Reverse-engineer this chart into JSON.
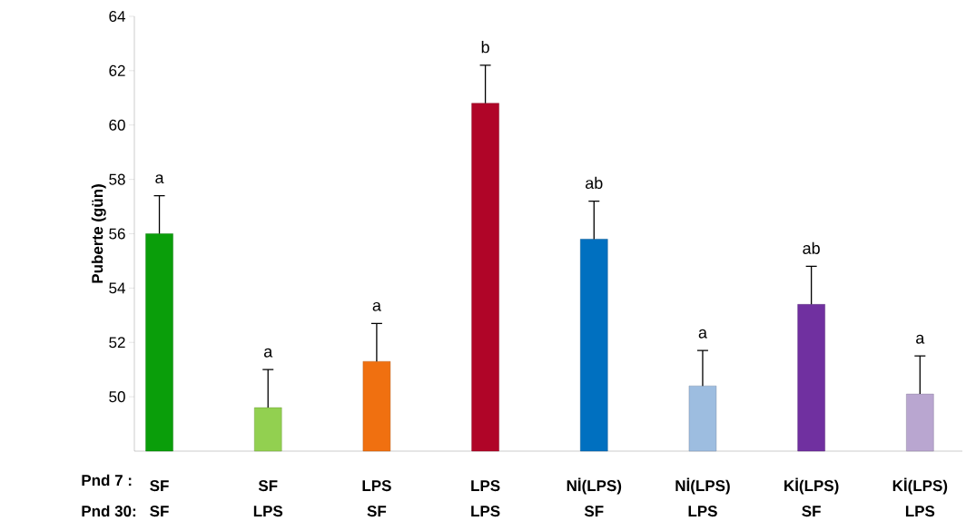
{
  "chart_data": {
    "type": "bar",
    "ylabel": "Puberte (gün)",
    "categories": [
      "SF",
      "SF",
      "LPS",
      "LPS",
      "Nİ(LPS)",
      "Nİ(LPS)",
      "Kİ(LPS)",
      "Kİ(LPS)"
    ],
    "values": [
      56.0,
      49.6,
      51.3,
      60.8,
      55.8,
      50.4,
      53.4,
      50.1
    ],
    "colors": [
      "#0a9e0a",
      "#92d050",
      "#f07010",
      "#b00528",
      "#0070c0",
      "#9dbde0",
      "#7030a0",
      "#b9a6d0"
    ],
    "errors": [
      [
        56.0,
        57.4
      ],
      [
        49.6,
        51.0
      ],
      [
        51.3,
        52.7
      ],
      [
        60.8,
        62.2
      ],
      [
        55.8,
        57.2
      ],
      [
        50.4,
        51.7
      ],
      [
        53.4,
        54.8
      ],
      [
        50.1,
        51.5
      ]
    ],
    "value_labels": [
      "a",
      "a",
      "a",
      "b",
      "ab",
      "a",
      "ab",
      "a"
    ],
    "ylim": [
      48,
      64
    ],
    "yticks": [
      50,
      52,
      54,
      56,
      58,
      60,
      62,
      64
    ],
    "annotations": [
      "Pnd  7 :",
      "Pnd 30:",
      "SF",
      "LPS",
      "SF",
      "LPS",
      "SF",
      "LPS",
      "SF",
      "LPS"
    ]
  }
}
